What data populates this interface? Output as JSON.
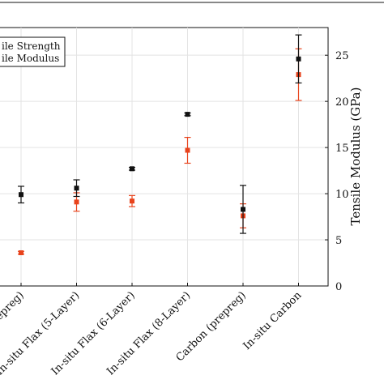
{
  "chart_data": {
    "type": "scatter",
    "categories": [
      "Flax (prepreg)",
      "In-situ Flax (5-Layer)",
      "In-situ Flax (6-Layer)",
      "In-situ Flax (8-Layer)",
      "Carbon (prepreg)",
      "In-situ Carbon"
    ],
    "tick_labels": [
      "prepreg)",
      "In-situ Flax (5-Layer)",
      "In-situ Flax (6-Layer)",
      "In-situ Flax (8-Layer)",
      "Carbon (prepreg)",
      "In-situ Carbon"
    ],
    "ylabel_right": "Tensile Modulus (GPa)",
    "yticks_right": [
      0,
      5,
      10,
      15,
      20,
      25
    ],
    "ylim_right": [
      0,
      28
    ],
    "grid": true,
    "legend_position": "top-left",
    "series": [
      {
        "name": "Tensile Strength",
        "legend_label": "ile Strength",
        "color": "#111111",
        "values": [
          9.9,
          10.6,
          12.7,
          18.6,
          8.3,
          24.6
        ],
        "errors": [
          0.9,
          0.9,
          0.15,
          0.15,
          2.6,
          2.6
        ]
      },
      {
        "name": "Tensile Modulus",
        "legend_label": "ile Modulus",
        "color": "#e8431c",
        "values": [
          3.6,
          9.1,
          9.2,
          14.7,
          7.6,
          22.9
        ],
        "errors": [
          0.15,
          1.0,
          0.6,
          1.4,
          1.3,
          2.8
        ]
      }
    ]
  }
}
